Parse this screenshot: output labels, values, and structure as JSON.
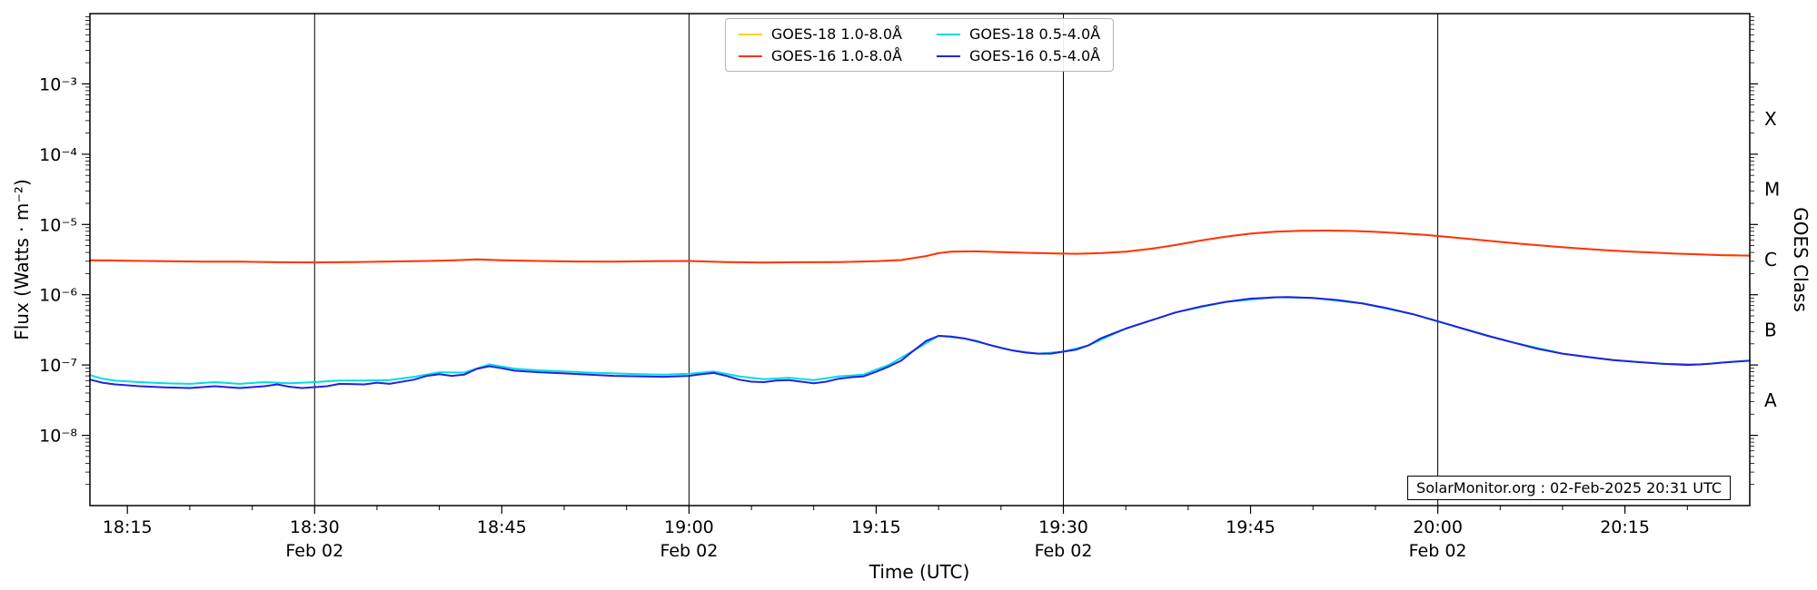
{
  "figure": {
    "xlabel": "Time (UTC)",
    "ylabel": "Flux (Watts · m⁻²)",
    "right_axis_label": "GOES Class",
    "annotation": "SolarMonitor.org : 02-Feb-2025 20:31 UTC",
    "background_color": "#ffffff",
    "frame_color": "#000000"
  },
  "chart_data": {
    "type": "line",
    "title": "",
    "xlabel": "Time (UTC)",
    "ylabel": "Flux (Watts · m⁻²)",
    "legend_position": "top-center",
    "x_unit": "minutes after 18:00 UTC on 02-Feb-2025",
    "x_axis": {
      "domain": [
        12,
        145
      ],
      "minor_tick_step": 5,
      "major_ticks": [
        {
          "t": 15,
          "label": "18:15"
        },
        {
          "t": 30,
          "label": "18:30"
        },
        {
          "t": 45,
          "label": "18:45"
        },
        {
          "t": 60,
          "label": "19:00"
        },
        {
          "t": 75,
          "label": "19:15"
        },
        {
          "t": 90,
          "label": "19:30"
        },
        {
          "t": 105,
          "label": "19:45"
        },
        {
          "t": 120,
          "label": "20:00"
        },
        {
          "t": 135,
          "label": "20:15"
        }
      ],
      "day_lines": [
        {
          "t": 30,
          "label": "Feb 02"
        },
        {
          "t": 60,
          "label": "Feb 02"
        },
        {
          "t": 90,
          "label": "Feb 02"
        },
        {
          "t": 120,
          "label": "Feb 02"
        }
      ]
    },
    "y_axis": {
      "scale": "log",
      "domain": [
        1e-09,
        0.01
      ],
      "tick_exponents": [
        -3,
        -4,
        -5,
        -6,
        -7,
        -8
      ],
      "tick_labels": [
        "10⁻³",
        "10⁻⁴",
        "10⁻⁵",
        "10⁻⁶",
        "10⁻⁷",
        "10⁻⁸"
      ]
    },
    "goes_classes": [
      {
        "label": "X",
        "exponent": -3.5
      },
      {
        "label": "M",
        "exponent": -4.5
      },
      {
        "label": "C",
        "exponent": -5.5
      },
      {
        "label": "B",
        "exponent": -6.5
      },
      {
        "label": "A",
        "exponent": -7.5
      }
    ],
    "series": [
      {
        "id": "goes18-long",
        "name": "GOES-18 1.0-8.0Å",
        "color": "#ffd300",
        "points": [
          [
            12,
            3.1e-06
          ],
          [
            15,
            3.05e-06
          ],
          [
            18,
            3e-06
          ],
          [
            21,
            2.95e-06
          ],
          [
            24,
            2.95e-06
          ],
          [
            27,
            2.9e-06
          ],
          [
            30,
            2.88e-06
          ],
          [
            33,
            2.92e-06
          ],
          [
            36,
            2.97e-06
          ],
          [
            39,
            3.02e-06
          ],
          [
            41,
            3.08e-06
          ],
          [
            43,
            3.18e-06
          ],
          [
            45,
            3.1e-06
          ],
          [
            48,
            3.02e-06
          ],
          [
            51,
            2.97e-06
          ],
          [
            54,
            2.96e-06
          ],
          [
            57,
            3e-06
          ],
          [
            60,
            3.02e-06
          ],
          [
            63,
            2.92e-06
          ],
          [
            66,
            2.87e-06
          ],
          [
            69,
            2.9e-06
          ],
          [
            72,
            2.92e-06
          ],
          [
            75,
            3e-06
          ],
          [
            77,
            3.12e-06
          ],
          [
            79,
            3.55e-06
          ],
          [
            80,
            3.9e-06
          ],
          [
            81,
            4.1e-06
          ],
          [
            83,
            4.15e-06
          ],
          [
            85,
            4.05e-06
          ],
          [
            87,
            3.95e-06
          ],
          [
            89,
            3.88e-06
          ],
          [
            91,
            3.82e-06
          ],
          [
            93,
            3.9e-06
          ],
          [
            95,
            4.1e-06
          ],
          [
            97,
            4.5e-06
          ],
          [
            99,
            5.1e-06
          ],
          [
            101,
            5.9e-06
          ],
          [
            103,
            6.7e-06
          ],
          [
            105,
            7.4e-06
          ],
          [
            107,
            7.9e-06
          ],
          [
            109,
            8.15e-06
          ],
          [
            111,
            8.2e-06
          ],
          [
            113,
            8.1e-06
          ],
          [
            115,
            7.85e-06
          ],
          [
            117,
            7.5e-06
          ],
          [
            119,
            7.1e-06
          ],
          [
            121,
            6.6e-06
          ],
          [
            123,
            6.1e-06
          ],
          [
            125,
            5.65e-06
          ],
          [
            127,
            5.25e-06
          ],
          [
            129,
            4.9e-06
          ],
          [
            131,
            4.6e-06
          ],
          [
            133,
            4.35e-06
          ],
          [
            135,
            4.15e-06
          ],
          [
            137,
            4e-06
          ],
          [
            139,
            3.85e-06
          ],
          [
            141,
            3.75e-06
          ],
          [
            143,
            3.65e-06
          ],
          [
            145,
            3.6e-06
          ]
        ]
      },
      {
        "id": "goes16-long",
        "name": "GOES-16 1.0-8.0Å",
        "color": "#ff3311",
        "points": [
          [
            12,
            3.1e-06
          ],
          [
            15,
            3.05e-06
          ],
          [
            18,
            3e-06
          ],
          [
            21,
            2.95e-06
          ],
          [
            24,
            2.95e-06
          ],
          [
            27,
            2.9e-06
          ],
          [
            30,
            2.88e-06
          ],
          [
            33,
            2.92e-06
          ],
          [
            36,
            2.97e-06
          ],
          [
            39,
            3.02e-06
          ],
          [
            41,
            3.08e-06
          ],
          [
            43,
            3.18e-06
          ],
          [
            45,
            3.1e-06
          ],
          [
            48,
            3.02e-06
          ],
          [
            51,
            2.97e-06
          ],
          [
            54,
            2.96e-06
          ],
          [
            57,
            3e-06
          ],
          [
            60,
            3.02e-06
          ],
          [
            63,
            2.92e-06
          ],
          [
            66,
            2.87e-06
          ],
          [
            69,
            2.9e-06
          ],
          [
            72,
            2.92e-06
          ],
          [
            75,
            3e-06
          ],
          [
            77,
            3.12e-06
          ],
          [
            79,
            3.55e-06
          ],
          [
            80,
            3.9e-06
          ],
          [
            81,
            4.1e-06
          ],
          [
            83,
            4.15e-06
          ],
          [
            85,
            4.05e-06
          ],
          [
            87,
            3.95e-06
          ],
          [
            89,
            3.88e-06
          ],
          [
            91,
            3.82e-06
          ],
          [
            93,
            3.9e-06
          ],
          [
            95,
            4.1e-06
          ],
          [
            97,
            4.5e-06
          ],
          [
            99,
            5.1e-06
          ],
          [
            101,
            5.9e-06
          ],
          [
            103,
            6.7e-06
          ],
          [
            105,
            7.4e-06
          ],
          [
            107,
            7.9e-06
          ],
          [
            109,
            8.15e-06
          ],
          [
            111,
            8.2e-06
          ],
          [
            113,
            8.1e-06
          ],
          [
            115,
            7.85e-06
          ],
          [
            117,
            7.5e-06
          ],
          [
            119,
            7.1e-06
          ],
          [
            121,
            6.6e-06
          ],
          [
            123,
            6.1e-06
          ],
          [
            125,
            5.65e-06
          ],
          [
            127,
            5.25e-06
          ],
          [
            129,
            4.9e-06
          ],
          [
            131,
            4.6e-06
          ],
          [
            133,
            4.35e-06
          ],
          [
            135,
            4.15e-06
          ],
          [
            137,
            4e-06
          ],
          [
            139,
            3.85e-06
          ],
          [
            141,
            3.75e-06
          ],
          [
            143,
            3.65e-06
          ],
          [
            145,
            3.6e-06
          ]
        ]
      },
      {
        "id": "goes18-short",
        "name": "GOES-18 0.5-4.0Å",
        "color": "#00dce8",
        "points": [
          [
            12,
            7.2e-08
          ],
          [
            13,
            6.4e-08
          ],
          [
            14,
            6e-08
          ],
          [
            16,
            5.7e-08
          ],
          [
            18,
            5.5e-08
          ],
          [
            20,
            5.4e-08
          ],
          [
            22,
            5.7e-08
          ],
          [
            24,
            5.4e-08
          ],
          [
            26,
            5.7e-08
          ],
          [
            28,
            5.5e-08
          ],
          [
            30,
            5.7e-08
          ],
          [
            32,
            6e-08
          ],
          [
            34,
            6e-08
          ],
          [
            36,
            6.1e-08
          ],
          [
            38,
            6.8e-08
          ],
          [
            40,
            7.9e-08
          ],
          [
            42,
            7.8e-08
          ],
          [
            44,
            1.02e-07
          ],
          [
            46,
            8.9e-08
          ],
          [
            48,
            8.4e-08
          ],
          [
            50,
            8.1e-08
          ],
          [
            52,
            7.8e-08
          ],
          [
            54,
            7.6e-08
          ],
          [
            56,
            7.4e-08
          ],
          [
            58,
            7.3e-08
          ],
          [
            60,
            7.5e-08
          ],
          [
            62,
            8.1e-08
          ],
          [
            64,
            6.9e-08
          ],
          [
            66,
            6.3e-08
          ],
          [
            68,
            6.6e-08
          ],
          [
            70,
            6.1e-08
          ],
          [
            72,
            6.9e-08
          ],
          [
            74,
            7.3e-08
          ],
          [
            75,
            8.6e-08
          ],
          [
            76,
            1e-07
          ],
          [
            78,
            1.6e-07
          ],
          [
            80,
            2.6e-07
          ],
          [
            82,
            2.4e-07
          ],
          [
            84,
            1.95e-07
          ],
          [
            86,
            1.6e-07
          ],
          [
            88,
            1.45e-07
          ],
          [
            90,
            1.55e-07
          ],
          [
            92,
            1.9e-07
          ],
          [
            95,
            3.3e-07
          ],
          [
            99,
            5.6e-07
          ],
          [
            103,
            7.9e-07
          ],
          [
            107,
            9.2e-07
          ],
          [
            110,
            9e-07
          ],
          [
            114,
            7.5e-07
          ],
          [
            118,
            5.3e-07
          ],
          [
            122,
            3.3e-07
          ],
          [
            126,
            2.1e-07
          ],
          [
            130,
            1.45e-07
          ],
          [
            134,
            1.18e-07
          ],
          [
            138,
            1.04e-07
          ],
          [
            141,
            1.02e-07
          ],
          [
            143,
            1.09e-07
          ],
          [
            145,
            1.15e-07
          ]
        ]
      },
      {
        "id": "goes16-short",
        "name": "GOES-16 0.5-4.0Å",
        "color": "#2222dd",
        "points": [
          [
            12,
            6.2e-08
          ],
          [
            13,
            5.6e-08
          ],
          [
            14,
            5.3e-08
          ],
          [
            16,
            5e-08
          ],
          [
            18,
            4.8e-08
          ],
          [
            20,
            4.7e-08
          ],
          [
            22,
            5e-08
          ],
          [
            24,
            4.7e-08
          ],
          [
            26,
            5e-08
          ],
          [
            27,
            5.3e-08
          ],
          [
            28,
            4.9e-08
          ],
          [
            29,
            4.7e-08
          ],
          [
            31,
            5e-08
          ],
          [
            32,
            5.4e-08
          ],
          [
            34,
            5.3e-08
          ],
          [
            35,
            5.6e-08
          ],
          [
            36,
            5.4e-08
          ],
          [
            38,
            6.2e-08
          ],
          [
            39,
            7e-08
          ],
          [
            40,
            7.4e-08
          ],
          [
            41,
            7e-08
          ],
          [
            42,
            7.3e-08
          ],
          [
            43,
            8.8e-08
          ],
          [
            44,
            9.6e-08
          ],
          [
            45,
            9e-08
          ],
          [
            46,
            8.3e-08
          ],
          [
            48,
            7.9e-08
          ],
          [
            50,
            7.6e-08
          ],
          [
            52,
            7.3e-08
          ],
          [
            54,
            7e-08
          ],
          [
            56,
            6.9e-08
          ],
          [
            58,
            6.8e-08
          ],
          [
            60,
            7e-08
          ],
          [
            61,
            7.4e-08
          ],
          [
            62,
            7.7e-08
          ],
          [
            63,
            7e-08
          ],
          [
            64,
            6.2e-08
          ],
          [
            65,
            5.8e-08
          ],
          [
            66,
            5.7e-08
          ],
          [
            67,
            6e-08
          ],
          [
            68,
            6.1e-08
          ],
          [
            69,
            5.8e-08
          ],
          [
            70,
            5.5e-08
          ],
          [
            71,
            5.8e-08
          ],
          [
            72,
            6.4e-08
          ],
          [
            73,
            6.7e-08
          ],
          [
            74,
            6.9e-08
          ],
          [
            75,
            8e-08
          ],
          [
            76,
            9.5e-08
          ],
          [
            77,
            1.15e-07
          ],
          [
            78,
            1.6e-07
          ],
          [
            79,
            2.2e-07
          ],
          [
            80,
            2.6e-07
          ],
          [
            81,
            2.55e-07
          ],
          [
            82,
            2.4e-07
          ],
          [
            83,
            2.2e-07
          ],
          [
            84,
            1.95e-07
          ],
          [
            85,
            1.75e-07
          ],
          [
            86,
            1.6e-07
          ],
          [
            87,
            1.5e-07
          ],
          [
            88,
            1.45e-07
          ],
          [
            89,
            1.45e-07
          ],
          [
            90,
            1.55e-07
          ],
          [
            91,
            1.65e-07
          ],
          [
            92,
            1.9e-07
          ],
          [
            93,
            2.4e-07
          ],
          [
            95,
            3.3e-07
          ],
          [
            97,
            4.3e-07
          ],
          [
            99,
            5.6e-07
          ],
          [
            101,
            6.8e-07
          ],
          [
            103,
            7.9e-07
          ],
          [
            105,
            8.8e-07
          ],
          [
            107,
            9.2e-07
          ],
          [
            108,
            9.25e-07
          ],
          [
            110,
            9e-07
          ],
          [
            112,
            8.4e-07
          ],
          [
            114,
            7.5e-07
          ],
          [
            116,
            6.4e-07
          ],
          [
            118,
            5.3e-07
          ],
          [
            120,
            4.2e-07
          ],
          [
            122,
            3.3e-07
          ],
          [
            124,
            2.6e-07
          ],
          [
            126,
            2.1e-07
          ],
          [
            128,
            1.7e-07
          ],
          [
            130,
            1.45e-07
          ],
          [
            132,
            1.3e-07
          ],
          [
            134,
            1.18e-07
          ],
          [
            136,
            1.1e-07
          ],
          [
            138,
            1.04e-07
          ],
          [
            140,
            1e-07
          ],
          [
            141,
            1.02e-07
          ],
          [
            142,
            1.05e-07
          ],
          [
            143,
            1.09e-07
          ],
          [
            144,
            1.12e-07
          ],
          [
            145,
            1.15e-07
          ]
        ]
      }
    ]
  }
}
